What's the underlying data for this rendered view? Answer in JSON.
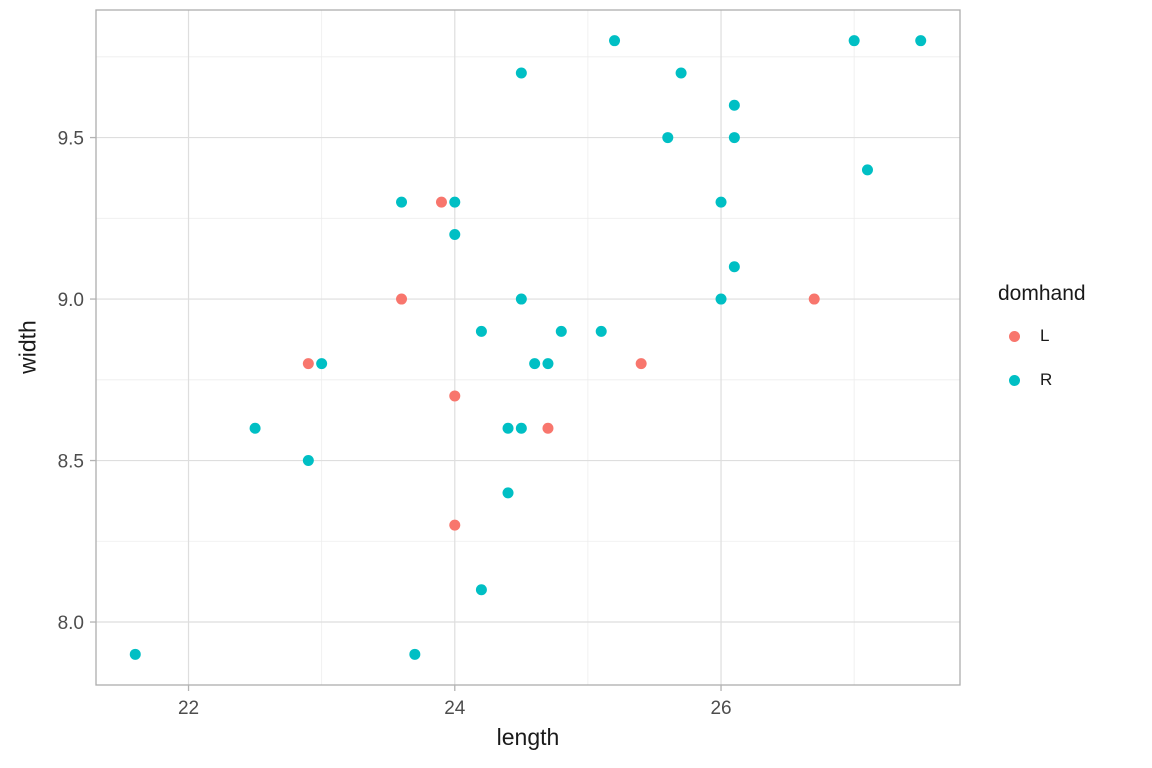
{
  "chart_data": {
    "type": "scatter",
    "title": "",
    "xlabel": "length",
    "ylabel": "width",
    "xlim": [
      21.305,
      27.795
    ],
    "ylim": [
      7.805,
      9.895
    ],
    "x_major_ticks": [
      22,
      24,
      26
    ],
    "x_tick_labels": [
      "22",
      "24",
      "26"
    ],
    "x_minor_ticks": [
      23,
      25,
      27
    ],
    "y_major_ticks": [
      8.0,
      8.5,
      9.0,
      9.5
    ],
    "y_tick_labels": [
      "8.0",
      "8.5",
      "9.0",
      "9.5"
    ],
    "y_minor_ticks": [
      8.25,
      8.75,
      9.25,
      9.75
    ],
    "grid": true,
    "legend": {
      "title": "domhand",
      "position": "right",
      "entries": [
        {
          "label": "L",
          "color": "#F8766D"
        },
        {
          "label": "R",
          "color": "#00BFC4"
        }
      ]
    },
    "series": [
      {
        "name": "L",
        "color": "#F8766D",
        "points": [
          [
            22.9,
            8.8
          ],
          [
            23.6,
            9.0
          ],
          [
            23.9,
            9.3
          ],
          [
            24.0,
            8.7
          ],
          [
            24.0,
            8.3
          ],
          [
            24.7,
            8.6
          ],
          [
            25.4,
            8.8
          ],
          [
            26.7,
            9.0
          ]
        ]
      },
      {
        "name": "R",
        "color": "#00BFC4",
        "points": [
          [
            21.6,
            7.9
          ],
          [
            22.5,
            8.6
          ],
          [
            22.9,
            8.5
          ],
          [
            23.0,
            8.8
          ],
          [
            23.6,
            9.3
          ],
          [
            23.7,
            7.9
          ],
          [
            24.0,
            9.3
          ],
          [
            24.0,
            9.2
          ],
          [
            24.2,
            8.9
          ],
          [
            24.2,
            8.1
          ],
          [
            24.4,
            8.4
          ],
          [
            24.4,
            8.6
          ],
          [
            24.5,
            8.6
          ],
          [
            24.5,
            9.0
          ],
          [
            24.5,
            9.7
          ],
          [
            24.6,
            8.8
          ],
          [
            24.7,
            8.8
          ],
          [
            24.8,
            8.9
          ],
          [
            25.1,
            8.9
          ],
          [
            25.2,
            9.8
          ],
          [
            25.6,
            9.5
          ],
          [
            25.7,
            9.7
          ],
          [
            26.0,
            9.0
          ],
          [
            26.0,
            9.3
          ],
          [
            26.1,
            9.1
          ],
          [
            26.1,
            9.5
          ],
          [
            26.1,
            9.6
          ],
          [
            27.0,
            9.8
          ],
          [
            27.1,
            9.4
          ],
          [
            27.5,
            9.8
          ]
        ]
      }
    ],
    "theme": {
      "panel_background": "#FFFFFF",
      "panel_border": "#ADADAD",
      "grid_major": "#DEDEDE",
      "grid_minor": "#EDEDED",
      "tick_mark": "#B3B3B3",
      "tick_label_color": "#4D4D4D",
      "point_radius": 5.5
    }
  }
}
